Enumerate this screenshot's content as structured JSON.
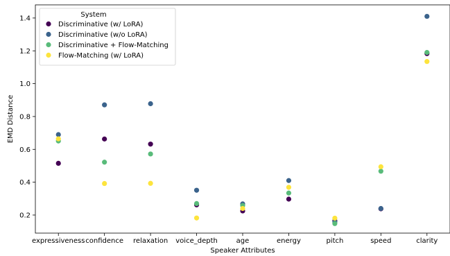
{
  "chart_data": {
    "type": "scatter",
    "xlabel": "Speaker Attributes",
    "ylabel": "EMD Distance",
    "ylim": [
      0.09,
      1.48
    ],
    "yticks": [
      0.2,
      0.4,
      0.6,
      0.8,
      1.0,
      1.2,
      1.4
    ],
    "ytick_labels": [
      "0.2",
      "0.4",
      "0.6",
      "0.8",
      "1.0",
      "1.2",
      "1.4"
    ],
    "grid": false,
    "legend": {
      "title": "System",
      "position": "top-left"
    },
    "categories": [
      "expressiveness",
      "confidence",
      "relaxation",
      "voice_depth",
      "age",
      "energy",
      "pitch",
      "speed",
      "clarity"
    ],
    "series": [
      {
        "name": "Discriminative (w/ LoRA)",
        "color": "#440154",
        "values": [
          0.515,
          0.663,
          0.632,
          0.262,
          0.225,
          0.297,
          0.165,
          0.238,
          1.183
        ]
      },
      {
        "name": "Discriminative (w/o LoRA)",
        "color": "#3b638c",
        "values": [
          0.69,
          0.871,
          0.878,
          0.351,
          0.268,
          0.41,
          0.158,
          0.24,
          1.41
        ]
      },
      {
        "name": "Discriminative + Flow-Matching",
        "color": "#59bb7a",
        "values": [
          0.651,
          0.522,
          0.572,
          0.27,
          0.258,
          0.334,
          0.148,
          0.467,
          1.19
        ]
      },
      {
        "name": "Flow-Matching (w/ LoRA)",
        "color": "#fde43d",
        "values": [
          0.664,
          0.392,
          0.393,
          0.182,
          0.24,
          0.369,
          0.181,
          0.494,
          1.135
        ]
      }
    ]
  }
}
